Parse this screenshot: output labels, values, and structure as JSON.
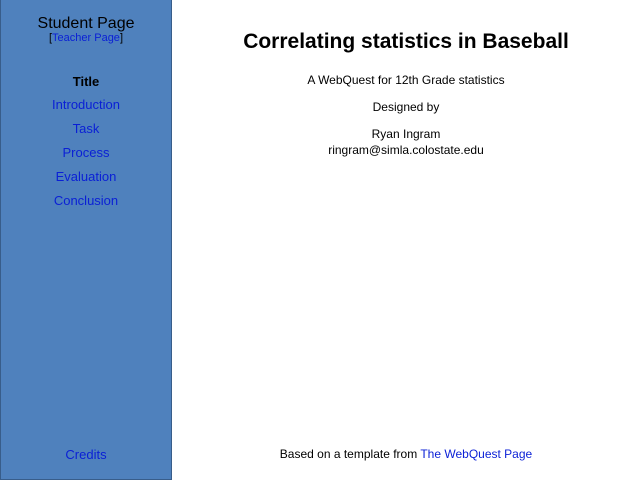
{
  "sidebar": {
    "title": "Student Page",
    "teacher_link": "Teacher Page",
    "items": [
      {
        "label": "Title"
      },
      {
        "label": "Introduction"
      },
      {
        "label": "Task"
      },
      {
        "label": "Process"
      },
      {
        "label": "Evaluation"
      },
      {
        "label": "Conclusion"
      }
    ],
    "credits": "Credits"
  },
  "main": {
    "title": "Correlating statistics in Baseball",
    "subtitle": "A WebQuest for 12th Grade statistics",
    "designed_by": "Designed by",
    "author": "Ryan Ingram",
    "email": "ringram@simla.colostate.edu",
    "footer_text": "Based on a template from",
    "footer_link": "The WebQuest Page"
  }
}
